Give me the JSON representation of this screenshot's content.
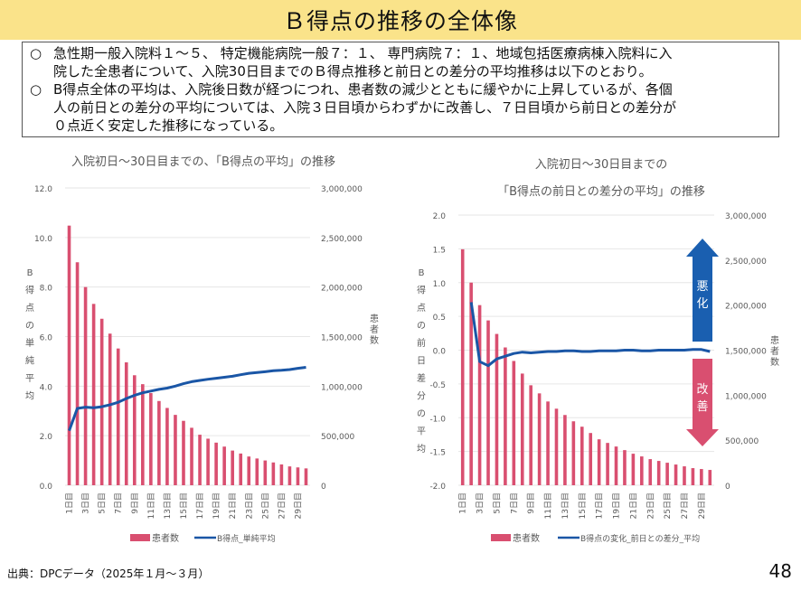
{
  "header": {
    "title": "Ｂ得点の推移の全体像"
  },
  "summary": {
    "bullets": [
      {
        "mark": "○",
        "lines": [
          "急性期一般入院料１～５、 特定機能病院一般７：１、 専門病院７：１、地域包括医療病棟入院料に入",
          "院した全患者について、入院30日目までのＢ得点推移と前日との差分の平均推移は以下のとおり。"
        ]
      },
      {
        "mark": "○",
        "lines": [
          "B得点全体の平均は、入院後日数が経つにつれ、患者数の減少とともに緩やかに上昇しているが、各個",
          "人の前日との差分の平均については、入院３日目頃からわずかに改善し、７日目頃から前日との差分が",
          "０点近く安定した推移になっている。"
        ]
      }
    ]
  },
  "colors": {
    "bar": "#d94f70",
    "line": "#1a56a6",
    "grid": "#e6e6e6",
    "axis_text": "#595959",
    "worsen_arrow": "#1a5fb0",
    "improve_arrow": "#d94f70"
  },
  "footer": {
    "source": "出典：DPCデータ（2025年１月～３月）",
    "page_number": "48"
  },
  "chart_data": [
    {
      "type": "bar+line",
      "title": "入院初日～30日目までの、「B得点の平均」の推移",
      "categories": [
        "1日目",
        "2日目",
        "3日目",
        "4日目",
        "5日目",
        "6日目",
        "7日目",
        "8日目",
        "9日目",
        "10日目",
        "11日目",
        "12日目",
        "13日目",
        "14日目",
        "15日目",
        "16日目",
        "17日目",
        "18日目",
        "19日目",
        "20日目",
        "21日目",
        "22日目",
        "23日目",
        "24日目",
        "25日目",
        "26日目",
        "27日目",
        "28日目",
        "29日目",
        "30日目"
      ],
      "tick_labels": [
        "1日目",
        "3日目",
        "5日目",
        "7日目",
        "9日目",
        "11日目",
        "13日目",
        "15日目",
        "17日目",
        "19日目",
        "21日目",
        "23日目",
        "25日目",
        "27日目",
        "29日目"
      ],
      "ylabel_left": "B得点の単純平均",
      "ylabel_right": "患者数",
      "ylim_left": [
        0,
        12
      ],
      "yticks_left": [
        "0.0",
        "2.0",
        "4.0",
        "6.0",
        "8.0",
        "10.0",
        "12.0"
      ],
      "ylim_right": [
        0,
        3000000
      ],
      "yticks_right": [
        "0",
        "500,000",
        "1,000,000",
        "1,500,000",
        "2,000,000",
        "2,500,000",
        "3,000,000"
      ],
      "grid": true,
      "legend_position": "bottom",
      "series": [
        {
          "name": "患者数",
          "kind": "bar",
          "axis": "right",
          "values": [
            2620000,
            2250000,
            2000000,
            1830000,
            1680000,
            1530000,
            1380000,
            1240000,
            1110000,
            1020000,
            930000,
            850000,
            780000,
            710000,
            650000,
            580000,
            510000,
            470000,
            430000,
            390000,
            350000,
            320000,
            290000,
            270000,
            250000,
            230000,
            210000,
            190000,
            180000,
            170000
          ]
        },
        {
          "name": "B得点_単純平均",
          "kind": "line",
          "axis": "left",
          "values": [
            2.2,
            3.1,
            3.15,
            3.13,
            3.17,
            3.25,
            3.35,
            3.5,
            3.63,
            3.73,
            3.8,
            3.87,
            3.92,
            4.0,
            4.1,
            4.18,
            4.23,
            4.28,
            4.32,
            4.36,
            4.4,
            4.46,
            4.52,
            4.55,
            4.58,
            4.62,
            4.64,
            4.67,
            4.72,
            4.76
          ]
        }
      ]
    },
    {
      "type": "bar+line",
      "title_lines": [
        "入院初日～30日目までの",
        "「B得点の前日との差分の平均」の推移"
      ],
      "categories": [
        "1日目",
        "2日目",
        "3日目",
        "4日目",
        "5日目",
        "6日目",
        "7日目",
        "8日目",
        "9日目",
        "10日目",
        "11日目",
        "12日目",
        "13日目",
        "14日目",
        "15日目",
        "16日目",
        "17日目",
        "18日目",
        "19日目",
        "20日目",
        "21日目",
        "22日目",
        "23日目",
        "24日目",
        "25日目",
        "26日目",
        "27日目",
        "28日目",
        "29日目",
        "30日目"
      ],
      "tick_labels": [
        "1日目",
        "3日目",
        "5日目",
        "7日目",
        "9日目",
        "11日目",
        "13日目",
        "15日目",
        "17日目",
        "19日目",
        "21日目",
        "23日目",
        "25日目",
        "27日目",
        "29日目"
      ],
      "ylabel_left": "B得点の前日差分の平均",
      "ylabel_right": "患者数",
      "ylim_left": [
        -2,
        2
      ],
      "yticks_left": [
        "-2.0",
        "-1.5",
        "-1.0",
        "-0.5",
        "0.0",
        "0.5",
        "1.0",
        "1.5",
        "2.0"
      ],
      "ylim_right": [
        0,
        3000000
      ],
      "yticks_right": [
        "0",
        "500,000",
        "1,000,000",
        "1,500,000",
        "2,000,000",
        "2,500,000",
        "3,000,000"
      ],
      "grid": true,
      "legend_position": "bottom",
      "annotations": {
        "up_arrow": "悪化",
        "down_arrow": "改善"
      },
      "series": [
        {
          "name": "患者数",
          "kind": "bar",
          "axis": "right",
          "values": [
            2620000,
            2250000,
            2000000,
            1830000,
            1680000,
            1530000,
            1380000,
            1240000,
            1110000,
            1020000,
            930000,
            850000,
            780000,
            710000,
            650000,
            580000,
            510000,
            470000,
            430000,
            390000,
            350000,
            320000,
            290000,
            270000,
            250000,
            230000,
            210000,
            190000,
            180000,
            170000
          ]
        },
        {
          "name": "B得点の変化_前日との差分_平均",
          "kind": "line",
          "axis": "left",
          "values": [
            null,
            0.71,
            -0.17,
            -0.23,
            -0.13,
            -0.09,
            -0.05,
            -0.03,
            -0.04,
            -0.03,
            -0.02,
            -0.02,
            -0.01,
            -0.01,
            -0.02,
            -0.02,
            -0.01,
            -0.01,
            -0.01,
            0.0,
            0.0,
            -0.01,
            -0.01,
            0.0,
            0.0,
            0.0,
            0.0,
            0.01,
            0.01,
            -0.02
          ]
        }
      ]
    }
  ]
}
